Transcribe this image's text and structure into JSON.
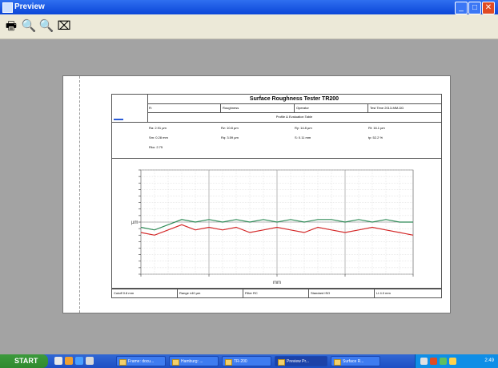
{
  "window": {
    "title": "Preview",
    "buttons": {
      "minimize": "_",
      "maximize": "□",
      "close": "✕"
    }
  },
  "toolbar": {
    "items": [
      {
        "name": "print",
        "glyph": "🖶"
      },
      {
        "name": "zoom-in",
        "glyph": "🔍"
      },
      {
        "name": "zoom-out",
        "glyph": "🔍"
      },
      {
        "name": "page-setup",
        "glyph": "⌧"
      }
    ]
  },
  "report": {
    "title": "Surface Roughness Tester TR200",
    "header_cells": [
      "R:",
      "Roughness",
      "Operator",
      "Test Time 2013-MM-DD"
    ],
    "subheader": "Profile & Evaluation Table",
    "params": [
      [
        "Ra: 2.91 µm",
        "Rz: 10.8 µm",
        "Ry: 14.8 µm",
        "Rt: 16.1 µm"
      ],
      [
        "Sm: 0.28 mm",
        "Rq: 3.59 µm",
        "S: 0.11 mm",
        "tp: 52.2 %"
      ],
      [
        "Rku: 2.75"
      ]
    ],
    "footer": [
      "Cutoff 0.8 mm",
      "Range ±40 µm",
      "Filter RC",
      "Standard ISO",
      "Lt 4.0 mm"
    ]
  },
  "chart_data": {
    "type": "line",
    "title": "",
    "xlabel": "mm",
    "ylabel": "µm",
    "xlim": [
      0,
      4.0
    ],
    "ylim": [
      -20,
      20
    ],
    "grid": true,
    "x": [
      0,
      0.2,
      0.4,
      0.6,
      0.8,
      1.0,
      1.2,
      1.4,
      1.6,
      1.8,
      2.0,
      2.2,
      2.4,
      2.6,
      2.8,
      3.0,
      3.2,
      3.4,
      3.6,
      3.8,
      4.0
    ],
    "series": [
      {
        "color": "#2e8b57",
        "values": [
          -2,
          -3,
          -1,
          1,
          0,
          1,
          0,
          1,
          0,
          1,
          0,
          1,
          0,
          1,
          1,
          0,
          1,
          0,
          1,
          0,
          0
        ]
      },
      {
        "color": "#d42a2a",
        "values": [
          -4,
          -5,
          -3,
          -1,
          -3,
          -2,
          -3,
          -2,
          -4,
          -3,
          -2,
          -3,
          -4,
          -2,
          -3,
          -4,
          -3,
          -2,
          -3,
          -4,
          -5
        ]
      }
    ]
  },
  "taskbar": {
    "start_label": "START",
    "tasks": [
      "Frame: docu...",
      "Hamburg: ...",
      "TR-200",
      "Preview Pr...",
      "Surface R..."
    ],
    "active_task": 3,
    "clock": "2:49"
  }
}
